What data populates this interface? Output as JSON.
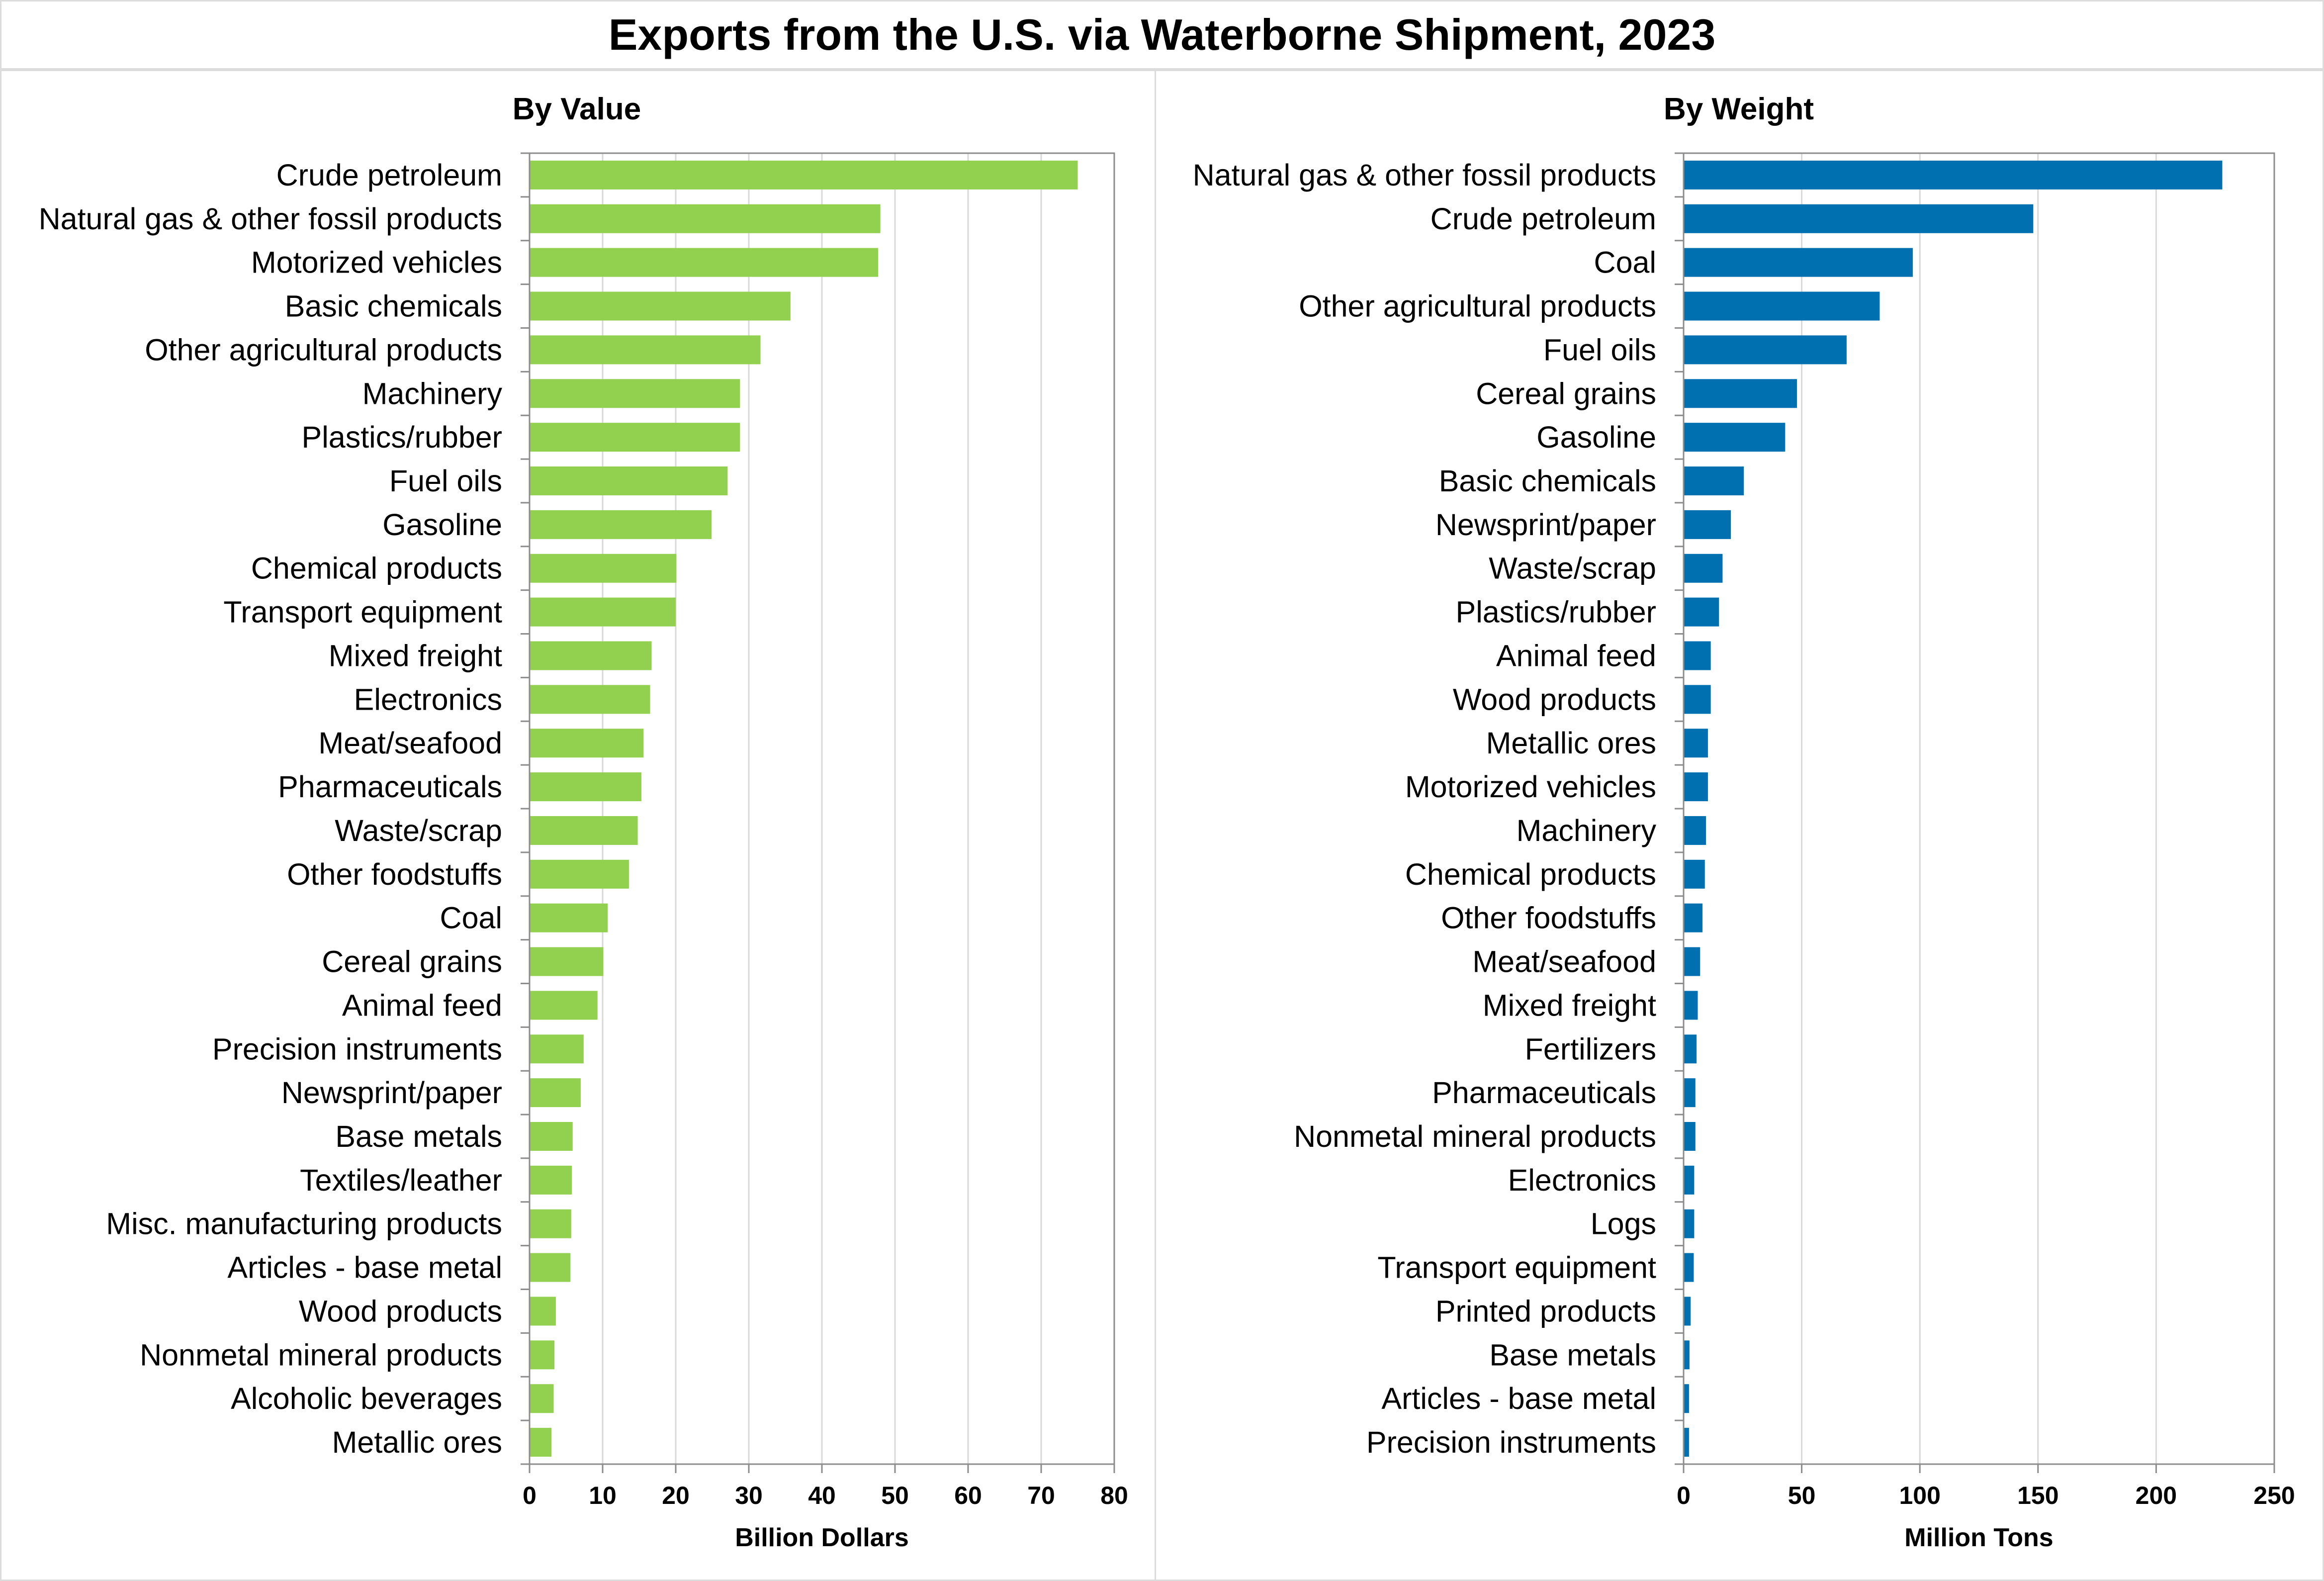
{
  "title": "Exports from the U.S. via Waterborne Shipment, 2023",
  "chart_data": [
    {
      "type": "bar",
      "orientation": "horizontal",
      "title": "By Value",
      "xlabel": "Billion Dollars",
      "xlim": [
        0,
        80
      ],
      "xticks": [
        0,
        10,
        20,
        30,
        40,
        50,
        60,
        70,
        80
      ],
      "grid": true,
      "color": "#92d050",
      "categories": [
        "Crude petroleum",
        "Natural gas & other fossil products",
        "Motorized vehicles",
        "Basic chemicals",
        "Other agricultural products",
        "Machinery",
        "Plastics/rubber",
        "Fuel oils",
        "Gasoline",
        "Chemical products",
        "Transport equipment",
        "Mixed freight",
        "Electronics",
        "Meat/seafood",
        "Pharmaceuticals",
        "Waste/scrap",
        "Other foodstuffs",
        "Coal",
        "Cereal grains",
        "Animal feed",
        "Precision instruments",
        "Newsprint/paper",
        "Base metals",
        "Textiles/leather",
        "Misc. manufacturing products",
        "Articles - base metal",
        "Wood products",
        "Nonmetal mineral products",
        "Alcoholic beverages",
        "Metallic ores"
      ],
      "values": [
        75,
        48,
        47.7,
        35.7,
        31.6,
        28.8,
        28.8,
        27.1,
        24.9,
        20.1,
        20.0,
        16.7,
        16.5,
        15.6,
        15.3,
        14.8,
        13.6,
        10.7,
        10.1,
        9.3,
        7.4,
        7.0,
        5.9,
        5.8,
        5.7,
        5.6,
        3.6,
        3.4,
        3.3,
        3.0
      ]
    },
    {
      "type": "bar",
      "orientation": "horizontal",
      "title": "By Weight",
      "xlabel": "Million Tons",
      "xlim": [
        0,
        250
      ],
      "xticks": [
        0,
        50,
        100,
        150,
        200,
        250
      ],
      "grid": true,
      "color": "#0070b0",
      "categories": [
        "Natural gas & other fossil products",
        "Crude petroleum",
        "Coal",
        "Other agricultural products",
        "Fuel oils",
        "Cereal grains",
        "Gasoline",
        "Basic chemicals",
        "Newsprint/paper",
        "Waste/scrap",
        "Plastics/rubber",
        "Animal feed",
        "Wood products",
        "Metallic ores",
        "Motorized vehicles",
        "Machinery",
        "Chemical products",
        "Other foodstuffs",
        "Meat/seafood",
        "Mixed freight",
        "Fertilizers",
        "Pharmaceuticals",
        "Nonmetal mineral products",
        "Electronics",
        "Logs",
        "Transport equipment",
        "Printed products",
        "Base metals",
        "Articles - base metal",
        "Precision instruments"
      ],
      "values": [
        228,
        148,
        97,
        83,
        69,
        48,
        43,
        25.5,
        20,
        16.5,
        15,
        11.5,
        11.5,
        10.3,
        10.3,
        9.5,
        9.0,
        8.0,
        7.0,
        6.0,
        5.5,
        5.0,
        5.0,
        4.5,
        4.5,
        4.3,
        3.0,
        2.5,
        2.3,
        2.3
      ]
    }
  ]
}
